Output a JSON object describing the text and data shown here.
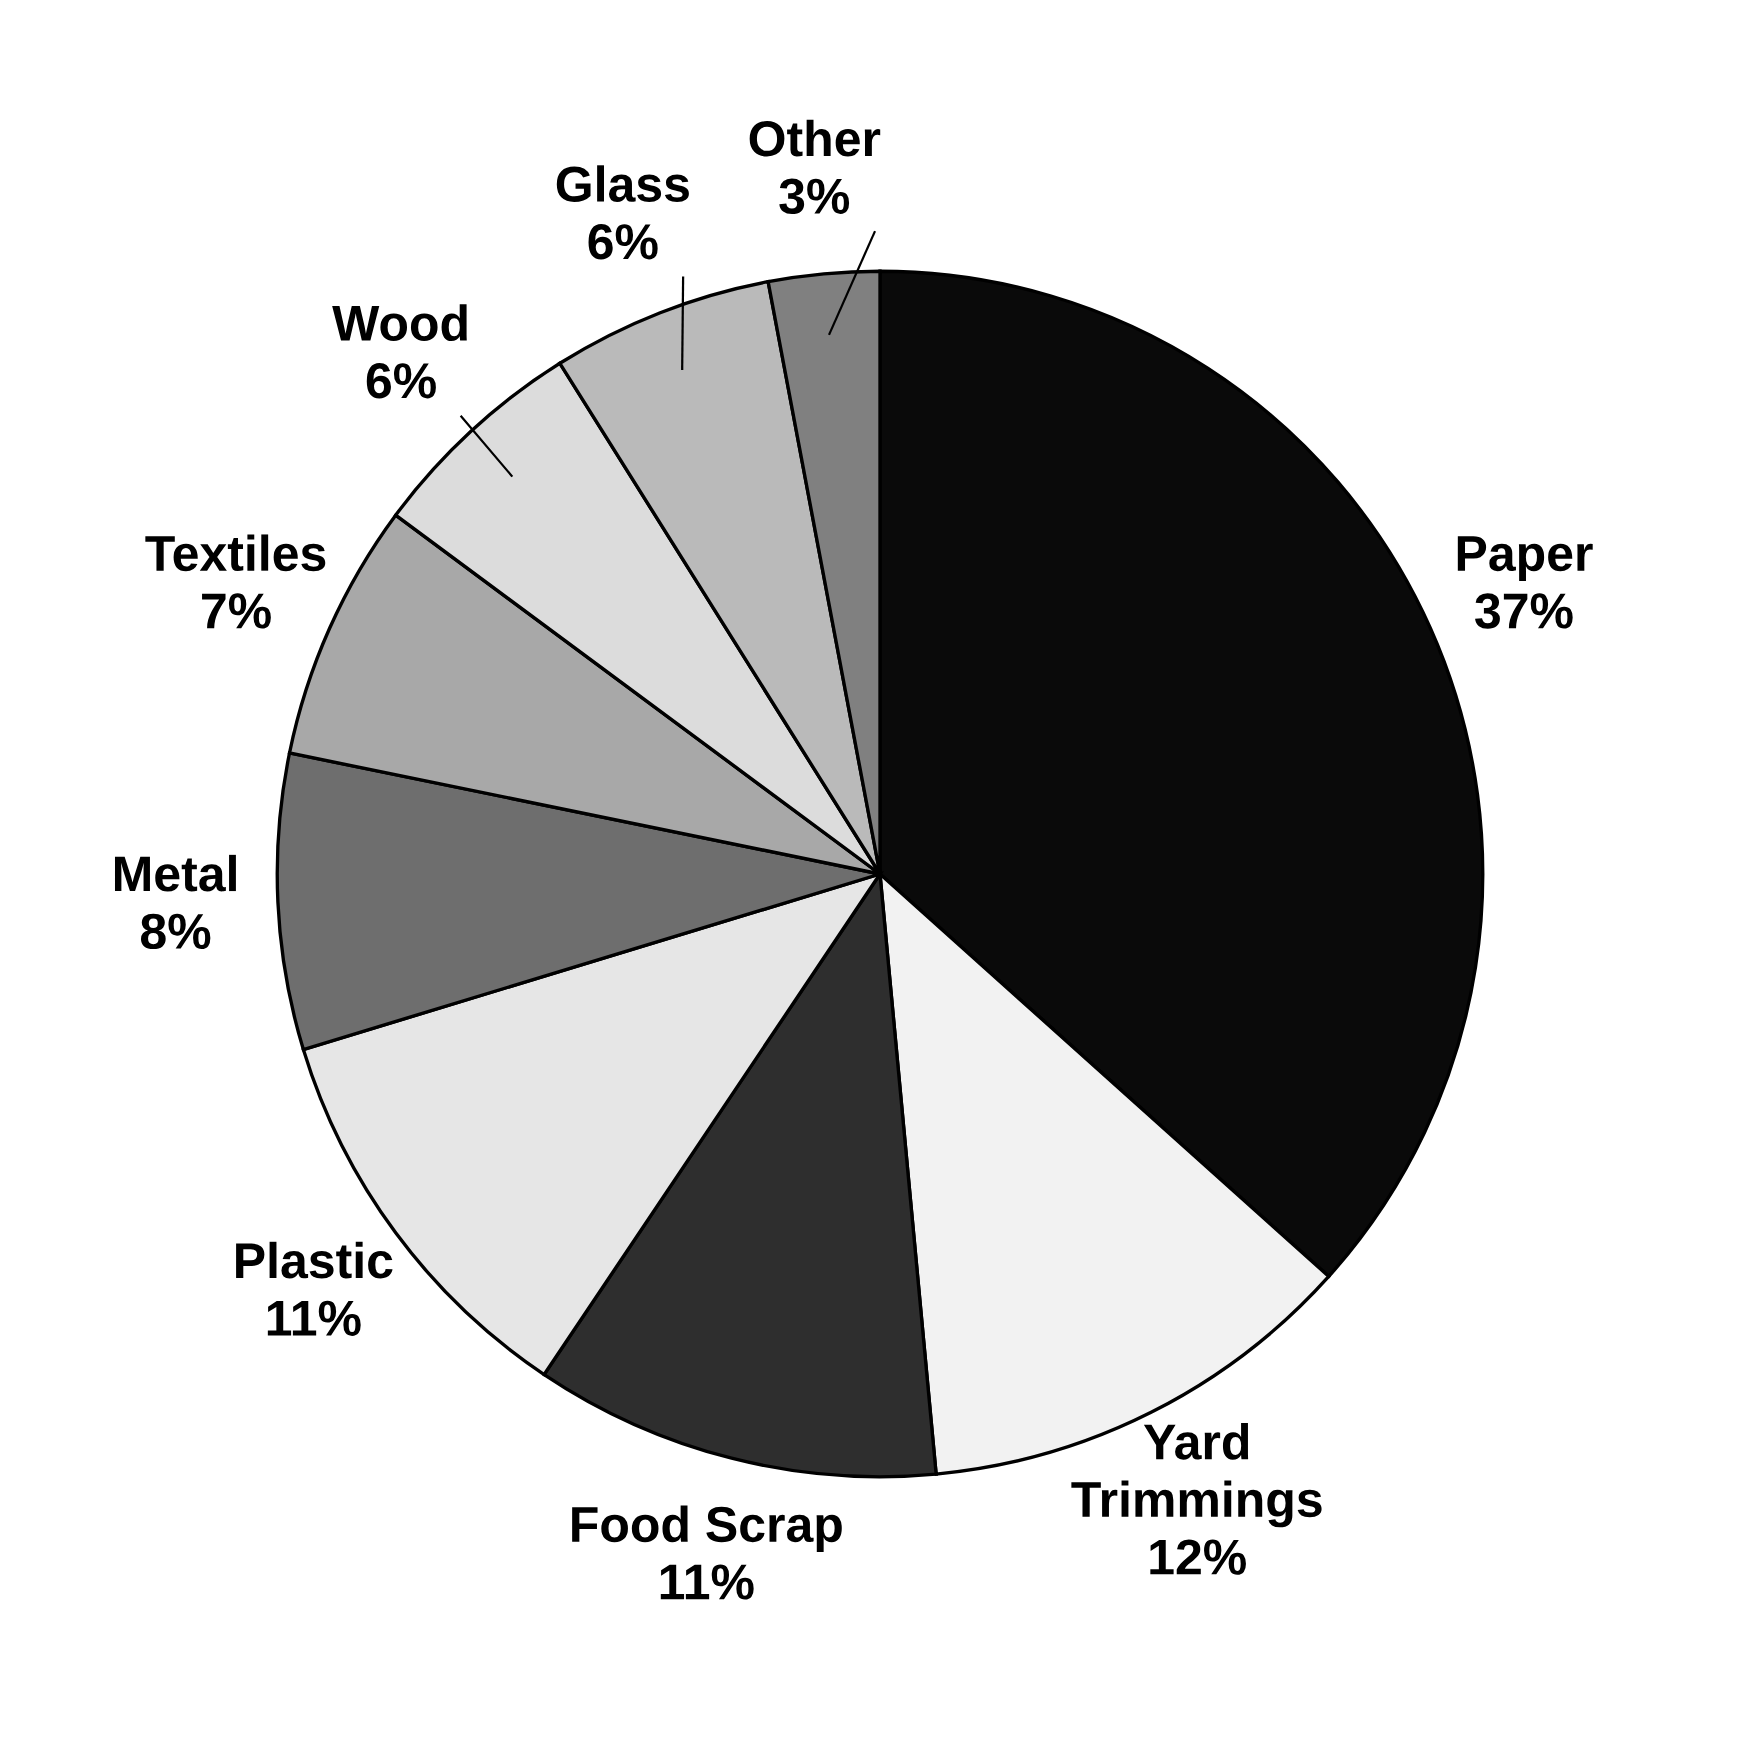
{
  "chart_data": {
    "type": "pie",
    "categories": [
      "Paper",
      "Yard\nTrimmings",
      "Food Scrap",
      "Plastic",
      "Metal",
      "Textiles",
      "Wood",
      "Glass",
      "Other"
    ],
    "values": [
      37,
      12,
      11,
      11,
      8,
      7,
      6,
      6,
      3
    ],
    "value_labels": [
      "37%",
      "12%",
      "11%",
      "11%",
      "8%",
      "7%",
      "6%",
      "6%",
      "3%"
    ],
    "colors": [
      "#0a0a0a",
      "#f2f2f2",
      "#2e2e2e",
      "#e6e6e6",
      "#6e6e6e",
      "#a8a8a8",
      "#dcdcdc",
      "#bababa",
      "#808080"
    ]
  }
}
